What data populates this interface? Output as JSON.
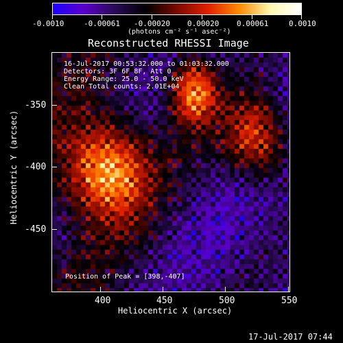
{
  "colorbar": {
    "tick_labels": [
      "-0.0010",
      "-0.00061",
      "-0.00020",
      "0.00020",
      "0.00061",
      "0.0010"
    ],
    "units": "(photons cm⁻² s⁻¹ asec⁻²)",
    "colors": [
      "#1b00ff",
      "#5a00c8",
      "#2a0a55",
      "#000000",
      "#7a0a00",
      "#e02000",
      "#ff8a00",
      "#fff7b0",
      "#ffffff"
    ]
  },
  "plot": {
    "title": "Reconstructed RHESSI Image",
    "xlabel": "Heliocentric X (arcsec)",
    "ylabel": "Heliocentric Y (arcsec)",
    "x_ticks": [
      "400",
      "450",
      "500",
      "550"
    ],
    "y_ticks": [
      "-350",
      "-400",
      "-450"
    ],
    "info_lines": [
      "16-Jul-2017 00:53:32.000 to 01:03:32.000",
      "Detectors: 3F 6F 8F, Att 0",
      "Energy Range: 25.0 - 50.0 keV",
      "Clean     Total counts: 2.01E+04"
    ],
    "peak_text": "Position of Peak = [398,-407]"
  },
  "footer": {
    "timestamp": "17-Jul-2017 07:44"
  }
}
